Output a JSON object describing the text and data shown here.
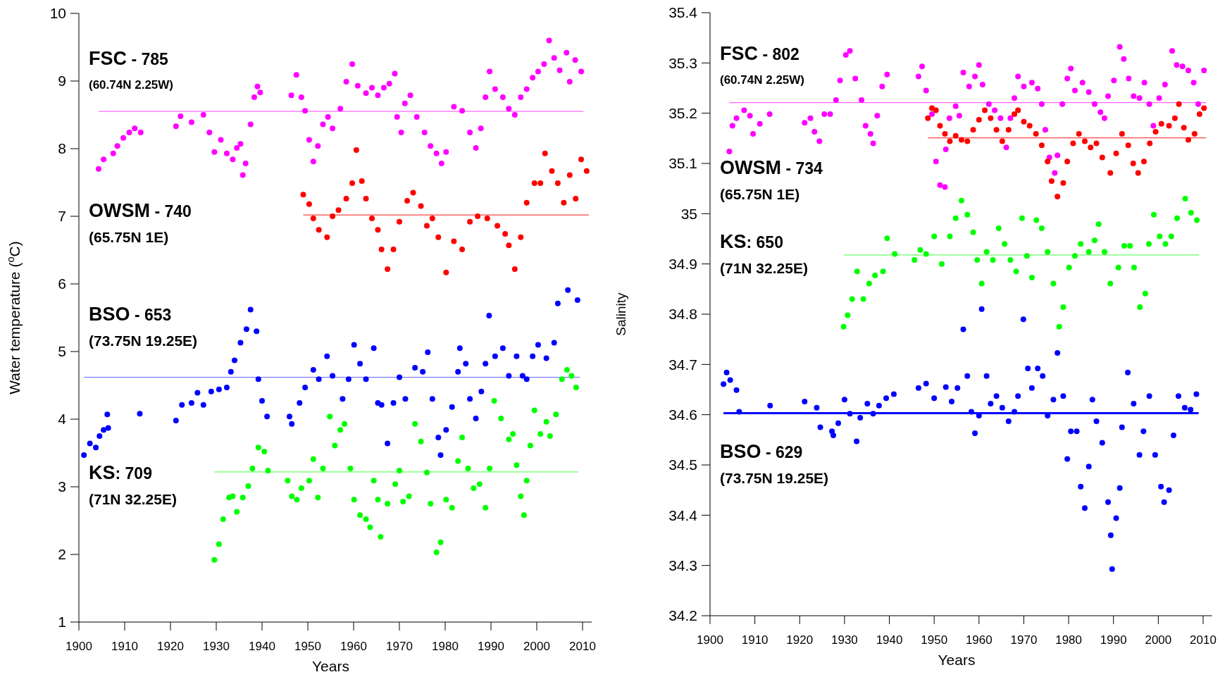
{
  "chart_data": [
    {
      "type": "scatter",
      "xlabel": "Years",
      "ylabel": "Water temperature ($^{o}$C)",
      "xlim": [
        1900,
        2012
      ],
      "xticks": [
        1900,
        1910,
        1920,
        1930,
        1940,
        1950,
        1960,
        1970,
        1980,
        1990,
        2000,
        2010
      ],
      "ylim": [
        1,
        10
      ],
      "yticks": [
        1,
        2,
        3,
        4,
        5,
        6,
        7,
        8,
        9,
        10
      ],
      "marker": "circle",
      "series": [
        {
          "color": "#ff00ff",
          "x": [
            1904.3,
            1905.4,
            1907.5,
            1908.4,
            1909.7,
            1911,
            1912.2,
            1913.5,
            1921.2,
            1922.2,
            1924.6,
            1927.2,
            1928.5,
            1929.6,
            1931,
            1932.3,
            1933.6,
            1934.5,
            1935.3,
            1935.8,
            1936.4,
            1937.5,
            1938.3,
            1939,
            1939.6,
            1946.4,
            1947.5,
            1948.6,
            1949.4,
            1950.3,
            1951.2,
            1952.2,
            1953.3,
            1954.4,
            1955.4,
            1957.1,
            1958.4,
            1959.7,
            1960.9,
            1962.7,
            1964,
            1965.3,
            1966.6,
            1967.8,
            1969,
            1969.5,
            1970.4,
            1971.2,
            1972.4,
            1973.8,
            1975.5,
            1976.8,
            1978.1,
            1979.2,
            1980.2,
            1981.9,
            1983.7,
            1985.4,
            1986.7,
            1987.8,
            1988.8,
            1989.7,
            1990.9,
            1992.6,
            1993.9,
            1995.2,
            1996.5,
            1997.8,
            1999.1,
            2000.3,
            2001.6,
            2002.7,
            2003.8,
            2005,
            2006.5,
            2007.2,
            2008.4,
            2009.7
          ],
          "values": [
            7.7,
            7.84,
            7.93,
            8.04,
            8.16,
            8.24,
            8.3,
            8.24,
            8.33,
            8.48,
            8.39,
            8.5,
            8.24,
            7.95,
            8.13,
            7.93,
            7.84,
            8.01,
            8.07,
            7.61,
            7.78,
            8.36,
            8.76,
            8.92,
            8.83,
            8.79,
            9.09,
            8.76,
            8.56,
            8.13,
            7.81,
            8.04,
            8.36,
            8.47,
            8.3,
            8.59,
            8.99,
            9.25,
            8.93,
            8.82,
            8.9,
            8.79,
            8.9,
            8.96,
            9.11,
            8.47,
            8.24,
            8.67,
            8.79,
            8.47,
            8.24,
            8.04,
            7.93,
            7.78,
            7.95,
            8.62,
            8.56,
            8.24,
            8.01,
            8.3,
            8.76,
            9.14,
            8.88,
            8.76,
            8.59,
            8.5,
            8.76,
            8.88,
            9.05,
            9.14,
            9.25,
            9.6,
            9.34,
            9.16,
            9.42,
            8.99,
            9.31,
            9.14
          ]
        },
        {
          "color": "#ff0000",
          "x": [
            1949,
            1950.3,
            1951.2,
            1952.4,
            1954.2,
            1955.4,
            1956.7,
            1958.4,
            1959.7,
            1960.6,
            1961.8,
            1962.7,
            1964,
            1965.3,
            1966.1,
            1967.4,
            1968.7,
            1970,
            1971.7,
            1973,
            1974.7,
            1976,
            1977.2,
            1978.5,
            1980.2,
            1981.9,
            1983.7,
            1985.4,
            1987.1,
            1989.2,
            1991.4,
            1993.1,
            1993.9,
            1995.2,
            1996.5,
            1997.8,
            1999.5,
            2000.8,
            2001.8,
            2003.3,
            2004.6,
            2005.9,
            2007.2,
            2008.5,
            2009.7,
            2010.9
          ],
          "values": [
            7.32,
            7.18,
            6.97,
            6.8,
            6.69,
            7,
            7.09,
            7.26,
            7.49,
            7.98,
            7.52,
            7.26,
            6.97,
            6.8,
            6.51,
            6.22,
            6.51,
            6.92,
            7.23,
            7.35,
            7.15,
            6.86,
            6.97,
            6.69,
            6.17,
            6.63,
            6.51,
            6.92,
            7,
            6.97,
            6.86,
            6.74,
            6.57,
            6.22,
            6.69,
            7.2,
            7.49,
            7.49,
            7.93,
            7.67,
            7.49,
            7.2,
            7.61,
            7.26,
            7.84,
            7.67
          ]
        },
        {
          "color": "#0000ff",
          "x": [
            1901.1,
            1902.4,
            1903.7,
            1904.5,
            1905.4,
            1906.2,
            1906.4,
            1913.3,
            1921.2,
            1922.5,
            1924.6,
            1925.9,
            1927.2,
            1928.9,
            1930.6,
            1932.3,
            1933.2,
            1934,
            1935.3,
            1936.6,
            1937.5,
            1938.8,
            1939.2,
            1940,
            1941.1,
            1946,
            1946.5,
            1948.2,
            1949.4,
            1951.2,
            1952.4,
            1954.2,
            1955.4,
            1957.6,
            1958.9,
            1960.1,
            1961.4,
            1962.7,
            1964.4,
            1965.3,
            1966.1,
            1967.4,
            1968.7,
            1970,
            1971.3,
            1973.4,
            1975.1,
            1976.2,
            1977.2,
            1978.5,
            1979,
            1980.2,
            1981.5,
            1982.8,
            1983.2,
            1984.5,
            1985.4,
            1986.7,
            1987.9,
            1988.8,
            1989.6,
            1990.9,
            1992.6,
            1993.9,
            1995.6,
            1996.9,
            1997.8,
            1999.1,
            2000.3,
            2002.1,
            2003.8,
            2004.6,
            2006.8,
            2008.9
          ],
          "values": [
            3.47,
            3.64,
            3.58,
            3.75,
            3.84,
            4.07,
            3.87,
            4.08,
            3.98,
            4.21,
            4.24,
            4.39,
            4.21,
            4.41,
            4.44,
            4.47,
            4.7,
            4.87,
            5.13,
            5.33,
            5.62,
            5.3,
            4.59,
            4.27,
            4.04,
            4.04,
            3.93,
            4.24,
            4.47,
            4.73,
            4.59,
            4.93,
            4.64,
            4.3,
            4.59,
            5.1,
            4.82,
            4.59,
            5.05,
            4.24,
            4.21,
            3.64,
            4.24,
            4.62,
            4.3,
            4.76,
            4.7,
            4.99,
            4.3,
            3.73,
            3.47,
            3.84,
            4.18,
            4.7,
            5.05,
            4.82,
            4.3,
            4.01,
            4.41,
            4.82,
            5.53,
            4.93,
            5.05,
            4.64,
            4.93,
            4.64,
            4.59,
            4.93,
            5.1,
            4.9,
            5.13,
            5.71,
            5.91,
            5.76
          ]
        },
        {
          "color": "#00ff00",
          "x": [
            1929.6,
            1930.6,
            1931.5,
            1932.8,
            1933.6,
            1934.5,
            1935.8,
            1937,
            1937.9,
            1939.2,
            1940.5,
            1941.3,
            1945.6,
            1946.5,
            1947.6,
            1948.6,
            1950.3,
            1951.2,
            1952.2,
            1953.3,
            1954.8,
            1955.9,
            1957.1,
            1958,
            1959.3,
            1960.1,
            1961.4,
            1962.7,
            1963.6,
            1964.4,
            1965.3,
            1965.9,
            1967.4,
            1969.1,
            1970,
            1970.8,
            1972.1,
            1973.4,
            1974.7,
            1976,
            1976.8,
            1978.1,
            1979,
            1980.2,
            1981.5,
            1982.8,
            1983.7,
            1985,
            1986.2,
            1987.5,
            1988.8,
            1989.7,
            1990.7,
            1992.2,
            1993.9,
            1994.8,
            1995.6,
            1996.5,
            1997.2,
            1997.8,
            1998.6,
            1999.5,
            2000.8,
            2002.1,
            2002.9,
            2004.2,
            2005.5,
            2006.6,
            2007.6,
            2008.6
          ],
          "values": [
            1.92,
            2.15,
            2.52,
            2.84,
            2.86,
            2.63,
            2.84,
            3.01,
            3.27,
            3.58,
            3.52,
            3.24,
            3.09,
            2.86,
            2.81,
            2.98,
            3.09,
            3.41,
            2.84,
            3.27,
            4.04,
            3.61,
            3.84,
            3.93,
            3.27,
            2.81,
            2.58,
            2.52,
            2.4,
            3.09,
            2.81,
            2.26,
            2.75,
            3.04,
            3.24,
            2.78,
            2.86,
            3.93,
            3.67,
            3.21,
            2.75,
            2.03,
            2.18,
            2.81,
            2.69,
            3.38,
            3.73,
            3.27,
            2.98,
            3.04,
            2.69,
            3.27,
            4.27,
            4.01,
            3.7,
            3.78,
            3.32,
            2.86,
            2.58,
            3.09,
            3.61,
            4.13,
            3.78,
            3.96,
            3.75,
            4.07,
            4.59,
            4.73,
            4.64,
            4.47
          ]
        }
      ],
      "ref_lines": [
        {
          "axis": "y",
          "value": 8.55,
          "color": "#ff66ff"
        },
        {
          "axis": "y",
          "value": 7.02,
          "color": "#ff4444"
        },
        {
          "axis": "y",
          "value": 4.62,
          "color": "#6666ff"
        },
        {
          "axis": "y",
          "value": 3.22,
          "color": "#66ff66"
        }
      ],
      "annotations": [
        "FSC - 785",
        "(60.74N 2.25W)",
        "OWSM - 740",
        "(65.75N 1E)",
        "BSO - 653",
        "(73.75N 19.25E)",
        "KS: 709",
        "(71N 32.25E)"
      ]
    },
    {
      "type": "scatter",
      "xlabel": "Years",
      "ylabel": "Salinity",
      "xlim": [
        1900,
        2012
      ],
      "xticks": [
        1900,
        1910,
        1920,
        1930,
        1940,
        1950,
        1960,
        1970,
        1980,
        1990,
        2000,
        2010
      ],
      "ylim": [
        34.2,
        35.4
      ],
      "yticks": [
        34.2,
        34.3,
        34.4,
        34.5,
        34.6,
        34.7,
        34.8,
        34.9,
        35,
        35.1,
        35.2,
        35.3,
        35.4
      ],
      "marker": "circle",
      "series": [
        {
          "color": "#ff00ff",
          "x": [
            1904.3,
            1905,
            1905.9,
            1907.6,
            1908.9,
            1909.6,
            1911.1,
            1913.3,
            1921.1,
            1922.4,
            1923.3,
            1924.4,
            1925.5,
            1926.8,
            1928.1,
            1929,
            1930.3,
            1931.2,
            1932.4,
            1933.8,
            1934.7,
            1935.8,
            1936.4,
            1937.3,
            1938.4,
            1939.5,
            1946.5,
            1947.3,
            1948.2,
            1949.5,
            1950.4,
            1951.3,
            1952.4,
            1952.6,
            1953.4,
            1954.8,
            1955.6,
            1956.5,
            1957.8,
            1959.1,
            1960,
            1960.8,
            1962.2,
            1963.5,
            1964.8,
            1966.1,
            1967,
            1967.9,
            1968.7,
            1970,
            1971.8,
            1973.1,
            1974,
            1974.8,
            1975.7,
            1976.9,
            1977.5,
            1978.6,
            1979.7,
            1980.5,
            1981.4,
            1983.1,
            1984.5,
            1985.8,
            1987.1,
            1988,
            1988.8,
            1990.1,
            1991.4,
            1992.3,
            1993.4,
            1994.5,
            1995.8,
            1996.9,
            1998,
            1998.9,
            2000.2,
            2001.5,
            2003.1,
            2004.1,
            2005.4,
            2006.7,
            2007.9,
            2008.9,
            2010.2
          ],
          "values": [
            35.124,
            35.175,
            35.19,
            35.206,
            35.195,
            35.159,
            35.179,
            35.198,
            35.181,
            35.19,
            35.163,
            35.144,
            35.198,
            35.198,
            35.226,
            35.265,
            35.316,
            35.324,
            35.269,
            35.226,
            35.175,
            35.159,
            35.14,
            35.195,
            35.253,
            35.277,
            35.273,
            35.293,
            35.245,
            35.198,
            35.104,
            35.057,
            35.053,
            35.128,
            35.19,
            35.214,
            35.195,
            35.281,
            35.253,
            35.273,
            35.296,
            35.257,
            35.218,
            35.206,
            35.19,
            35.132,
            35.19,
            35.23,
            35.273,
            35.253,
            35.261,
            35.249,
            35.218,
            35.167,
            35.112,
            35.081,
            35.116,
            35.218,
            35.269,
            35.289,
            35.245,
            35.261,
            35.242,
            35.218,
            35.202,
            35.19,
            35.234,
            35.265,
            35.332,
            35.308,
            35.269,
            35.234,
            35.23,
            35.261,
            35.218,
            35.175,
            35.23,
            35.257,
            35.324,
            35.296,
            35.293,
            35.285,
            35.261,
            35.218,
            35.285
          ]
        },
        {
          "color": "#ff0000",
          "x": [
            1948.6,
            1949.5,
            1950.4,
            1951.3,
            1952.4,
            1953.5,
            1954.8,
            1956.1,
            1957.4,
            1958.7,
            1960,
            1961.3,
            1962.6,
            1963.9,
            1965.2,
            1966.6,
            1967.9,
            1968.7,
            1970,
            1971.3,
            1972.7,
            1974,
            1975.3,
            1976.2,
            1977.5,
            1978.8,
            1979.7,
            1981,
            1982.3,
            1983.6,
            1984.9,
            1986.2,
            1987.5,
            1989.3,
            1990.6,
            1991.9,
            1993.3,
            1994.4,
            1995.5,
            1996.8,
            1998.1,
            1999.4,
            2000.7,
            2002.4,
            2003.7,
            2004.6,
            2005.7,
            2006.7,
            2008.1,
            2009.2,
            2010.2
          ],
          "values": [
            35.19,
            35.21,
            35.206,
            35.175,
            35.159,
            35.144,
            35.155,
            35.147,
            35.144,
            35.167,
            35.187,
            35.206,
            35.19,
            35.167,
            35.144,
            35.167,
            35.198,
            35.206,
            35.183,
            35.175,
            35.159,
            35.136,
            35.104,
            35.065,
            35.034,
            35.061,
            35.104,
            35.14,
            35.159,
            35.144,
            35.132,
            35.14,
            35.112,
            35.081,
            35.12,
            35.159,
            35.136,
            35.1,
            35.081,
            35.104,
            35.14,
            35.163,
            35.179,
            35.175,
            35.19,
            35.218,
            35.171,
            35.147,
            35.159,
            35.198,
            35.21
          ]
        },
        {
          "color": "#00ff00",
          "x": [
            1929.8,
            1930.7,
            1931.7,
            1932.8,
            1934.2,
            1935.5,
            1936.8,
            1938.6,
            1939.5,
            1941.2,
            1945.6,
            1946.9,
            1948.2,
            1950,
            1951.7,
            1953.5,
            1954.8,
            1956.1,
            1957.4,
            1958.7,
            1959.6,
            1960.6,
            1961.7,
            1963.1,
            1964.4,
            1965.7,
            1967,
            1968.3,
            1969.6,
            1970.7,
            1971.8,
            1972.8,
            1974,
            1975.3,
            1976.6,
            1977.9,
            1978.8,
            1980.1,
            1981.4,
            1982.7,
            1984.5,
            1985.8,
            1986.7,
            1988,
            1989.3,
            1991.1,
            1992.4,
            1993.7,
            1994.6,
            1995.9,
            1997.1,
            1997.9,
            1999,
            2000.3,
            2001.6,
            2002.9,
            2004.2,
            2006,
            2007.3,
            2008.6
          ],
          "values": [
            34.775,
            34.798,
            34.83,
            34.885,
            34.83,
            34.861,
            34.877,
            34.885,
            34.951,
            34.92,
            34.908,
            34.928,
            34.92,
            34.955,
            34.9,
            34.955,
            34.991,
            35.026,
            34.998,
            34.963,
            34.908,
            34.861,
            34.924,
            34.908,
            34.971,
            34.94,
            34.908,
            34.885,
            34.991,
            34.916,
            34.873,
            34.987,
            34.971,
            34.924,
            34.861,
            34.775,
            34.814,
            34.893,
            34.916,
            34.94,
            34.924,
            34.947,
            34.979,
            34.924,
            34.861,
            34.893,
            34.936,
            34.936,
            34.893,
            34.814,
            34.841,
            34.94,
            34.998,
            34.955,
            34.94,
            34.955,
            34.991,
            35.03,
            35.002,
            34.987
          ]
        },
        {
          "color": "#0000ff",
          "x": [
            1903,
            1903.7,
            1904.5,
            1905.9,
            1906.5,
            1913.4,
            1921.1,
            1923.8,
            1924.6,
            1927.2,
            1927.5,
            1928.6,
            1930,
            1931.2,
            1932.7,
            1933.5,
            1935.1,
            1936.4,
            1937.7,
            1939.3,
            1941,
            1946.5,
            1948.2,
            1950,
            1952.6,
            1953.9,
            1955.2,
            1956.5,
            1957.4,
            1958.3,
            1959.1,
            1960,
            1960.6,
            1961.7,
            1962.6,
            1963.9,
            1965.2,
            1966.6,
            1967.9,
            1968.7,
            1969.9,
            1970.9,
            1971.8,
            1973.1,
            1974.2,
            1975.3,
            1976.6,
            1977.5,
            1978.8,
            1979.7,
            1980.5,
            1981.8,
            1982.7,
            1983.6,
            1984.5,
            1985.3,
            1986.2,
            1987.5,
            1988.8,
            1989.4,
            1989.7,
            1990.6,
            1991.4,
            1991.9,
            1993.2,
            1994.5,
            1995.8,
            1996.7,
            1998,
            1999.3,
            2000.6,
            2001.3,
            2002.4,
            2003.4,
            2004.5,
            2005.9,
            2007.2,
            2008.5
          ],
          "values": [
            34.661,
            34.684,
            34.669,
            34.649,
            34.606,
            34.618,
            34.626,
            34.614,
            34.575,
            34.567,
            34.559,
            34.583,
            34.63,
            34.602,
            34.547,
            34.594,
            34.622,
            34.602,
            34.618,
            34.633,
            34.641,
            34.653,
            34.662,
            34.633,
            34.655,
            34.626,
            34.653,
            34.77,
            34.677,
            34.606,
            34.563,
            34.598,
            34.81,
            34.677,
            34.622,
            34.637,
            34.614,
            34.587,
            34.606,
            34.637,
            34.79,
            34.692,
            34.653,
            34.692,
            34.677,
            34.598,
            34.63,
            34.723,
            34.637,
            34.512,
            34.567,
            34.567,
            34.457,
            34.414,
            34.497,
            34.63,
            34.587,
            34.544,
            34.426,
            34.36,
            34.293,
            34.394,
            34.454,
            34.575,
            34.684,
            34.622,
            34.52,
            34.567,
            34.637,
            34.52,
            34.457,
            34.426,
            34.45,
            34.559,
            34.637,
            34.614,
            34.61,
            34.641
          ]
        }
      ],
      "ref_lines": [
        {
          "axis": "y",
          "value": 35.221,
          "color": "#ff66ff"
        },
        {
          "axis": "y",
          "value": 35.151,
          "color": "#ff4444"
        },
        {
          "axis": "y",
          "value": 34.918,
          "color": "#66ff66"
        },
        {
          "axis": "y",
          "value": 34.603,
          "color": "#0000ff"
        }
      ],
      "annotations": [
        "FSC - 802",
        "(60.74N 2.25W)",
        "OWSM - 734",
        "(65.75N 1E)",
        "KS: 650",
        "(71N 32.25E)",
        "BSO - 629",
        "(73.75N 19.25E)"
      ]
    }
  ]
}
